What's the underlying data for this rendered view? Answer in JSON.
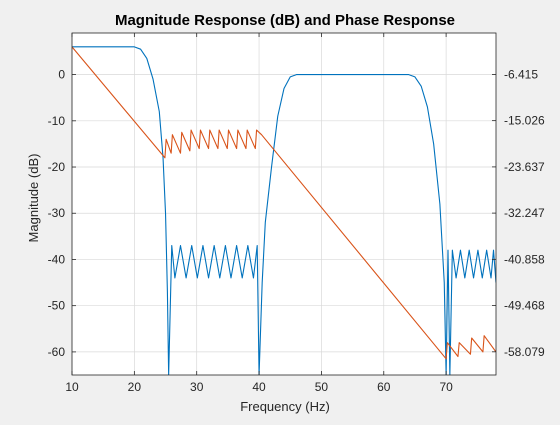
{
  "chart_data": {
    "type": "line",
    "title": "Magnitude Response (dB) and Phase Response",
    "xlabel": "Frequency (Hz)",
    "ylabel": "Magnitude (dB)",
    "y2label": "",
    "xlim": [
      10,
      78
    ],
    "ylim": [
      -65,
      9
    ],
    "y2lim": [
      -62.4,
      1.3
    ],
    "grid": true,
    "x_ticks": [
      10,
      20,
      30,
      40,
      50,
      60,
      70
    ],
    "y_ticks": [
      0,
      -10,
      -20,
      -30,
      -40,
      -50,
      -60
    ],
    "y2_ticks": [
      -6.415,
      -15.026,
      -23.637,
      -32.247,
      -40.858,
      -49.468,
      -58.079
    ],
    "y2_tick_labels": [
      "-6.415",
      "-15.026",
      "-23.637",
      "-32.247",
      "-40.858",
      "-49.468",
      "-58.079"
    ],
    "colors": {
      "magnitude": "#0072bd",
      "phase": "#d95319",
      "grid": "#d9d9d9",
      "axes": "#262626"
    },
    "series": [
      {
        "axis": "left",
        "color": "#0072bd",
        "x": [
          10,
          20,
          21,
          22,
          23,
          24,
          24.6,
          25,
          25.3,
          25.5,
          26,
          26.5,
          27.4,
          28.3,
          29.2,
          30.1,
          31,
          31.9,
          32.8,
          33.7,
          34.6,
          35.5,
          36.4,
          37.3,
          38.2,
          39.1,
          39.7,
          40,
          40.5,
          41,
          42,
          43,
          44,
          45,
          46,
          48,
          50,
          52,
          54,
          56,
          58,
          60,
          62,
          64,
          65,
          66,
          67,
          68,
          69,
          69.7,
          70,
          70.3,
          70.6,
          71,
          71.6,
          72.3,
          73,
          73.7,
          74.4,
          75.1,
          75.8,
          76.5,
          77.2,
          77.6,
          78
        ],
        "y": [
          6,
          6,
          5.5,
          3.5,
          -1,
          -8,
          -18,
          -30,
          -47,
          -65,
          -37,
          -44,
          -37,
          -44,
          -37,
          -44,
          -37,
          -44,
          -37,
          -44,
          -37,
          -44,
          -37,
          -44,
          -37,
          -44,
          -37,
          -65,
          -45,
          -32,
          -20,
          -9,
          -3,
          -0.5,
          0,
          0,
          0,
          0,
          0,
          0,
          0,
          0,
          0,
          0,
          -0.5,
          -2.5,
          -7,
          -15,
          -28,
          -45,
          -65,
          -38,
          -65,
          -38,
          -44,
          -38,
          -44,
          -38,
          -44,
          -38,
          -44,
          -38,
          -44,
          -38,
          -45
        ]
      },
      {
        "axis": "left",
        "color": "#d95319",
        "x": [
          10,
          24.9,
          25.1,
          25.9,
          26.1,
          27.4,
          27.6,
          28.9,
          29.1,
          30.4,
          30.6,
          31.9,
          32.1,
          33.4,
          33.6,
          34.9,
          35.1,
          36.4,
          36.6,
          37.9,
          38.1,
          39.4,
          39.6,
          40.4,
          70,
          70.2,
          71.9,
          72.1,
          73.9,
          74.1,
          75.9,
          76.1,
          78
        ],
        "y": [
          6,
          -18,
          -14,
          -17,
          -13,
          -17,
          -12.5,
          -16.5,
          -12,
          -16,
          -12,
          -16,
          -12,
          -16,
          -12,
          -16,
          -12,
          -16,
          -12,
          -16,
          -12,
          -16,
          -12,
          -13,
          -61.5,
          -58,
          -61,
          -58,
          -60.5,
          -57,
          -60,
          -56.5,
          -60
        ]
      }
    ]
  }
}
